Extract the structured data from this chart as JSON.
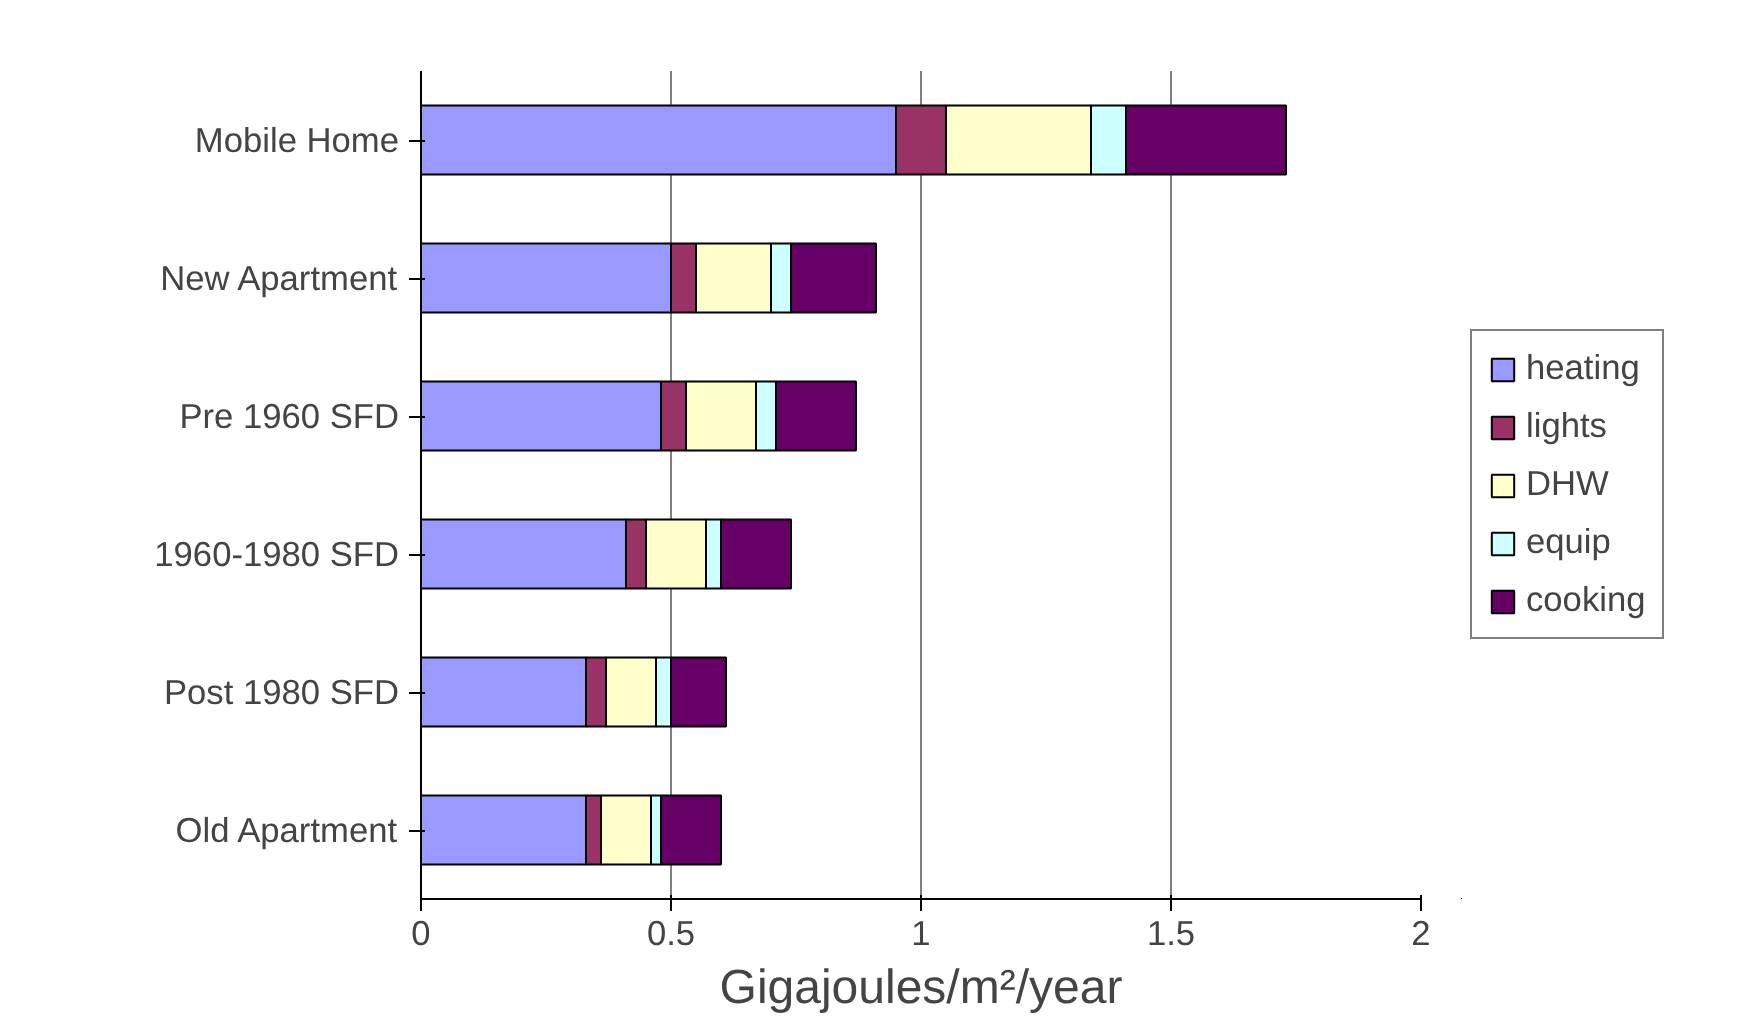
{
  "chart_data": {
    "type": "bar",
    "orientation": "horizontal",
    "stacked": true,
    "categories": [
      "Mobile Home",
      "New Apartment",
      "Pre 1960 SFD",
      "1960-1980 SFD",
      "Post 1980 SFD",
      "Old Apartment"
    ],
    "series": [
      {
        "name": "heating",
        "color": "#9999ff",
        "values": [
          0.95,
          0.5,
          0.48,
          0.41,
          0.33,
          0.33
        ]
      },
      {
        "name": "lights",
        "color": "#993366",
        "values": [
          0.1,
          0.05,
          0.05,
          0.04,
          0.04,
          0.03
        ]
      },
      {
        "name": "DHW",
        "color": "#ffffcc",
        "values": [
          0.29,
          0.15,
          0.14,
          0.12,
          0.1,
          0.1
        ]
      },
      {
        "name": "equip",
        "color": "#ccffff",
        "values": [
          0.07,
          0.04,
          0.04,
          0.03,
          0.03,
          0.02
        ]
      },
      {
        "name": "cooking",
        "color": "#660066",
        "values": [
          0.32,
          0.17,
          0.16,
          0.14,
          0.11,
          0.12
        ]
      }
    ],
    "xlabel": "Gigajoules/m²/year",
    "xlim": [
      0,
      2
    ],
    "xticks": [
      0,
      0.5,
      1,
      1.5,
      2
    ],
    "grid": "x",
    "legend": "right"
  }
}
